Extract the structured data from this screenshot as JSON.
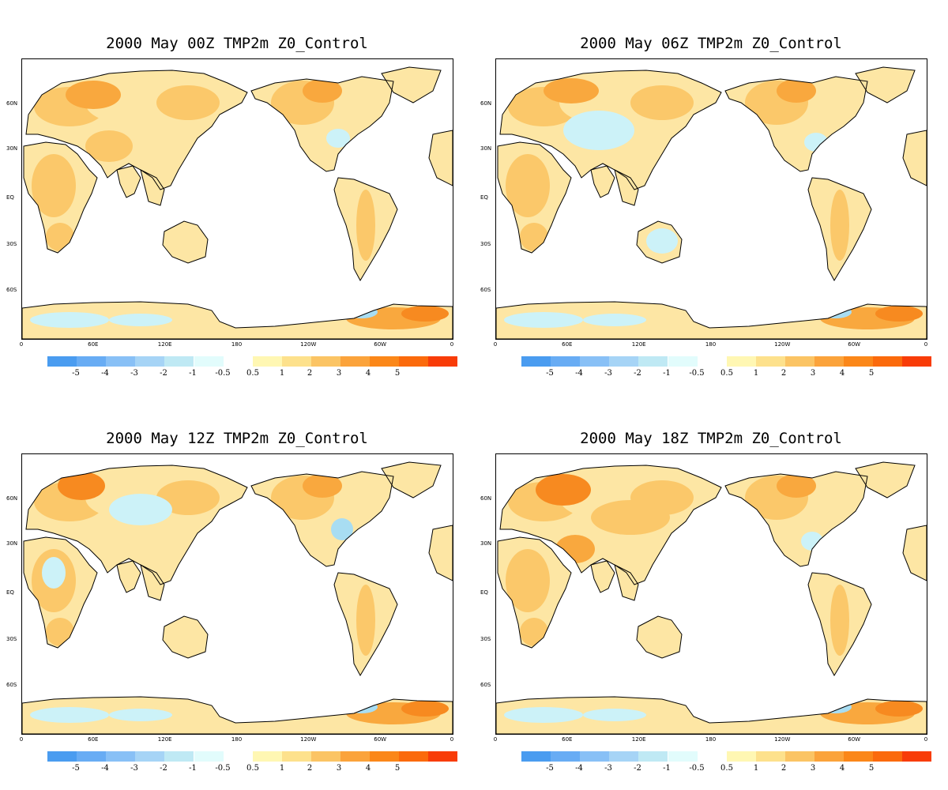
{
  "panels": [
    {
      "title": "2000 May  00Z TMP2m Z0_Control"
    },
    {
      "title": "2000  May 06Z TMP2m Z0_Control"
    },
    {
      "title": "2000  May 12Z TMP2m Z0_Control"
    },
    {
      "title": "2000  May 18Z TMP2m Z0_Control"
    }
  ],
  "axes": {
    "lat_labels": [
      "60N",
      "30N",
      "EQ",
      "30S",
      "60S"
    ],
    "lon_labels": [
      "0",
      "60E",
      "120E",
      "180",
      "120W",
      "60W",
      "0"
    ]
  },
  "colorbar": {
    "negative_colors": [
      "#4a9cf0",
      "#68acf4",
      "#88c0f6",
      "#a6d4f6",
      "#bfe9f4",
      "#e2fcfc"
    ],
    "positive_colors": [
      "#fff7b3",
      "#fde18c",
      "#fbc464",
      "#fba33b",
      "#fb8719",
      "#fb6a0c",
      "#f83c08"
    ],
    "tick_labels": [
      "-5",
      "-4",
      "-3",
      "-2",
      "-1",
      "-0.5",
      "0.5",
      "1",
      "2",
      "3",
      "4",
      "5"
    ]
  },
  "colors": {
    "warm_light": "#fde6a4",
    "warm_mid": "#fbc86a",
    "warm_strong": "#f9a83e",
    "warm_hot": "#f78a20",
    "cool_light": "#ccf2f8",
    "cool_mid": "#a8ddf2"
  }
}
